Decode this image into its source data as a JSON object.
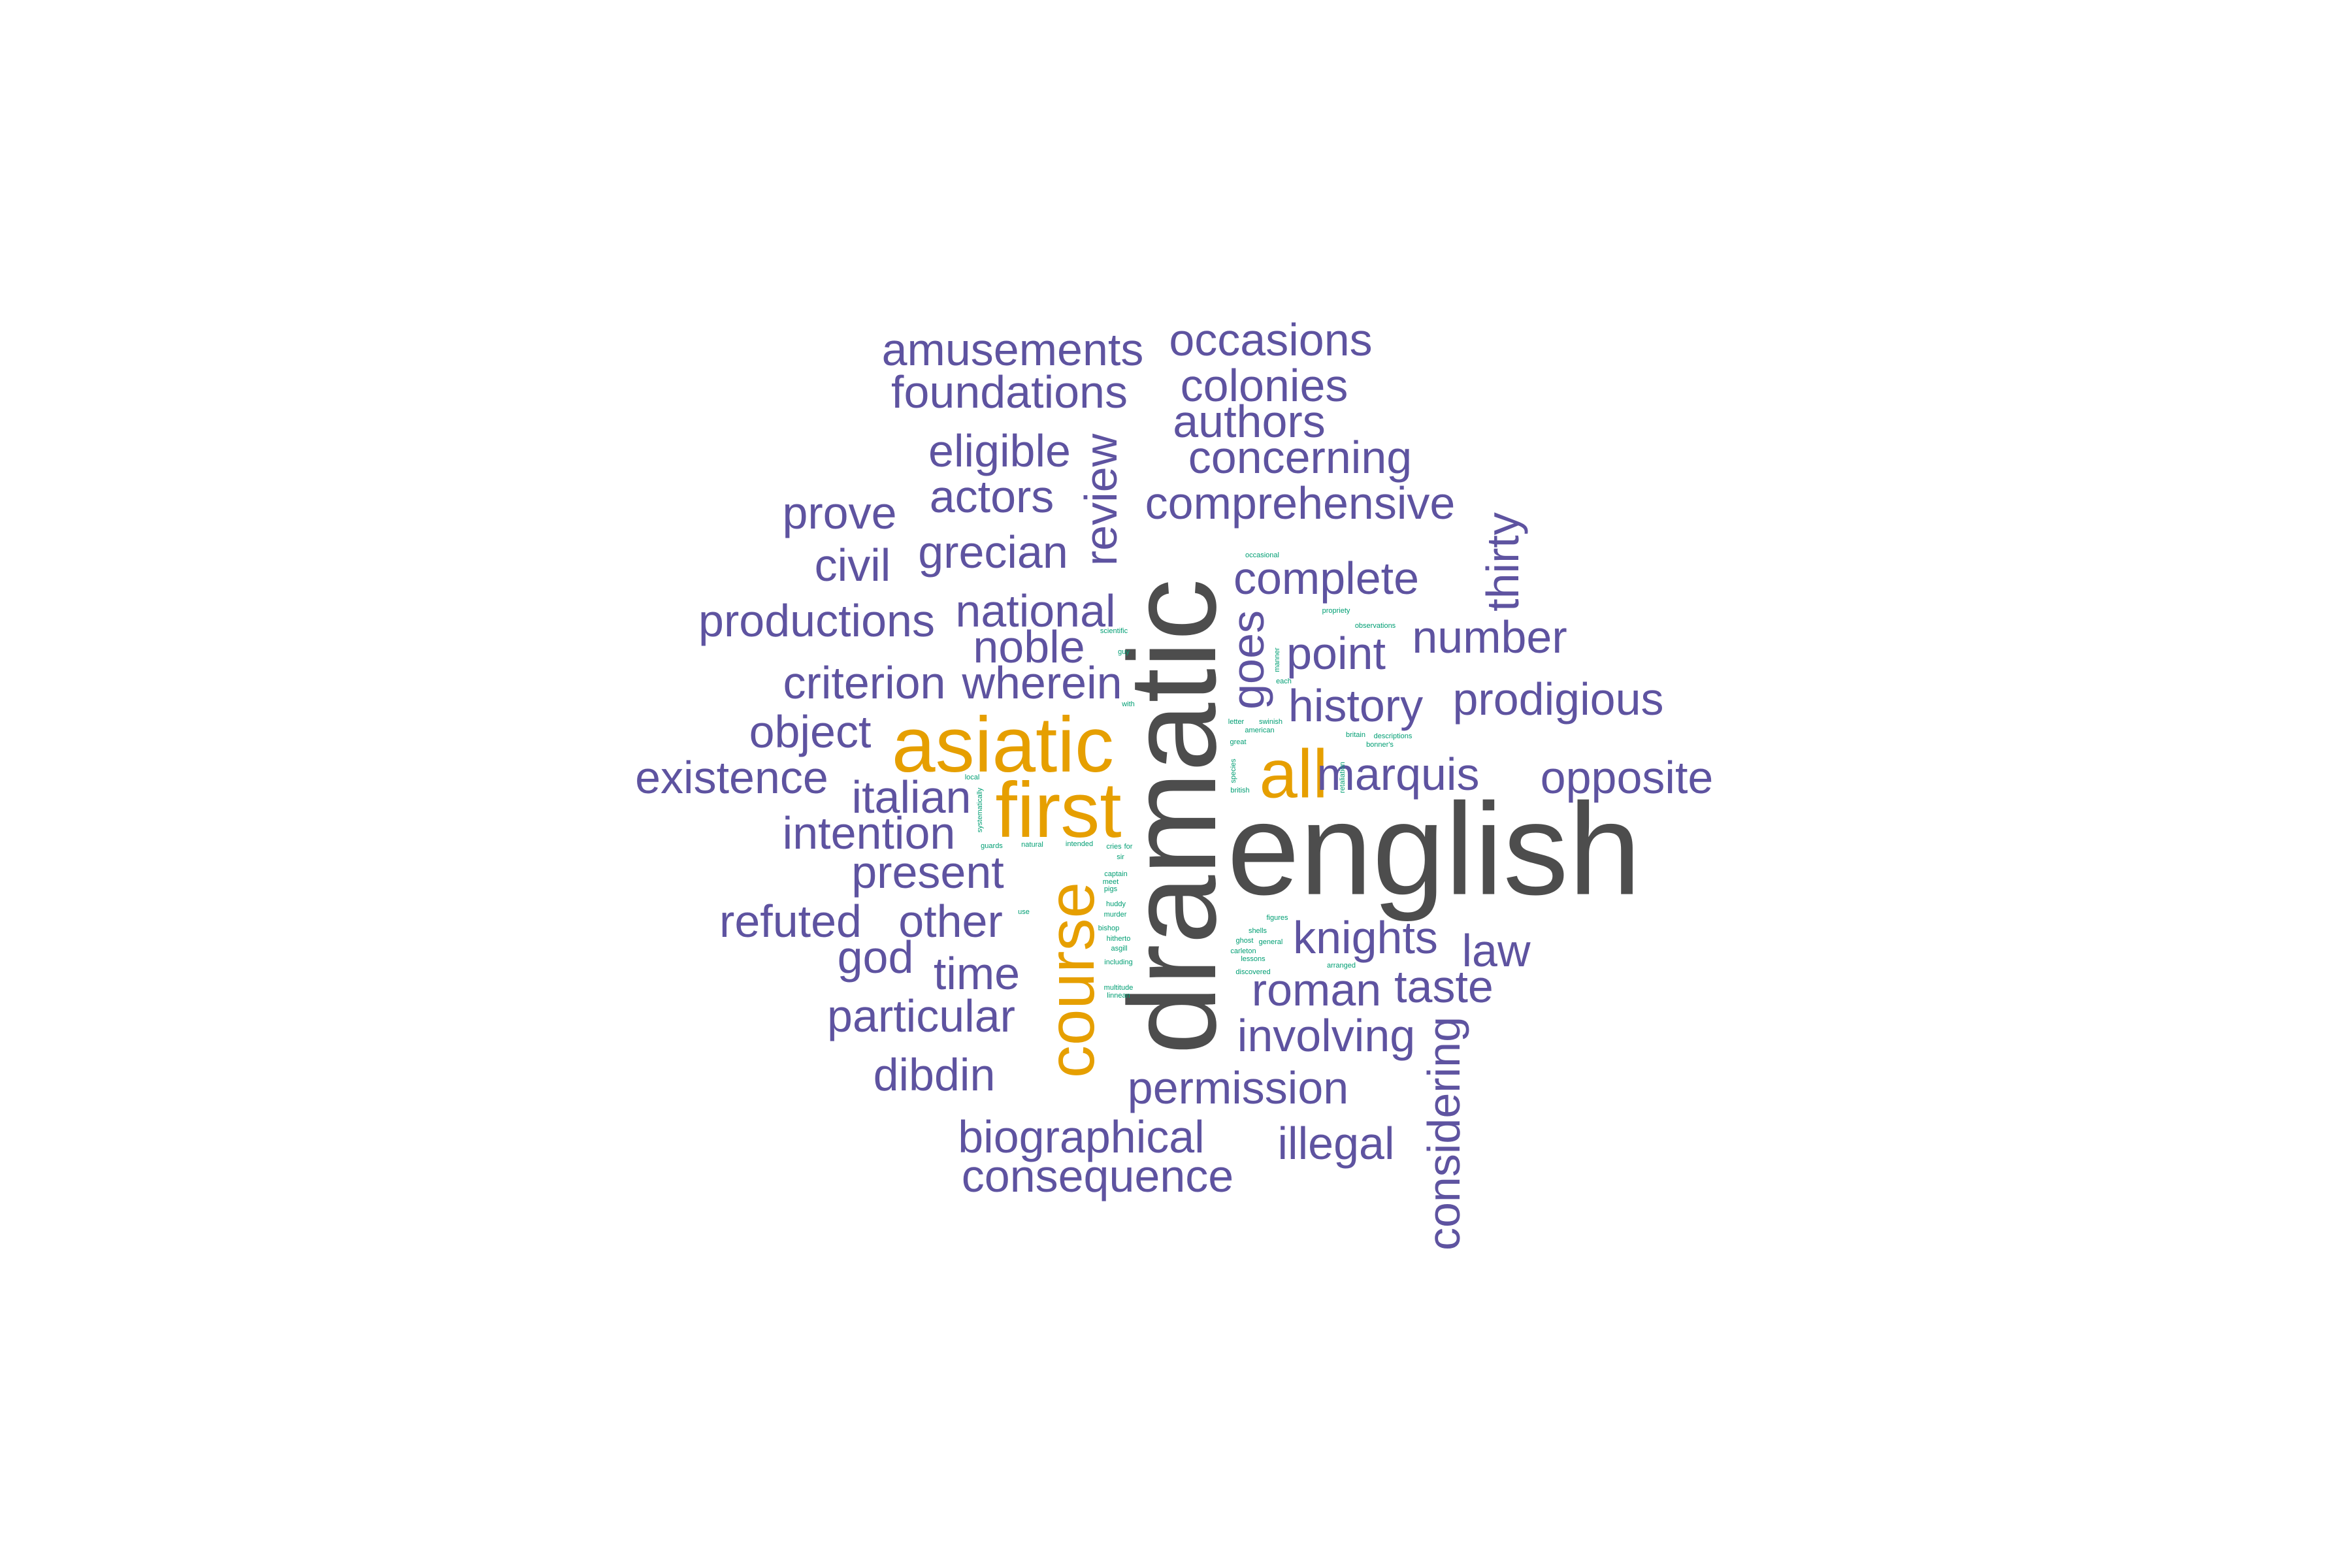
{
  "colors": {
    "background": "#ffffff",
    "tier_large": "#4d4d4d",
    "tier_medium": "#e69f00",
    "tier_small": "#5e53a0",
    "tier_tiny": "#009e73"
  },
  "words": [
    {
      "text": "english",
      "tier": "large"
    },
    {
      "text": "dramatic",
      "tier": "large"
    },
    {
      "text": "asiatic",
      "tier": "medium"
    },
    {
      "text": "first",
      "tier": "medium"
    },
    {
      "text": "all",
      "tier": "medium"
    },
    {
      "text": "course",
      "tier": "medium"
    },
    {
      "text": "amusements",
      "tier": "small"
    },
    {
      "text": "occasions",
      "tier": "small"
    },
    {
      "text": "foundations",
      "tier": "small"
    },
    {
      "text": "colonies",
      "tier": "small"
    },
    {
      "text": "authors",
      "tier": "small"
    },
    {
      "text": "eligible",
      "tier": "small"
    },
    {
      "text": "concerning",
      "tier": "small"
    },
    {
      "text": "review",
      "tier": "small"
    },
    {
      "text": "actors",
      "tier": "small"
    },
    {
      "text": "comprehensive",
      "tier": "small"
    },
    {
      "text": "prove",
      "tier": "small"
    },
    {
      "text": "thirty",
      "tier": "small"
    },
    {
      "text": "civil",
      "tier": "small"
    },
    {
      "text": "grecian",
      "tier": "small"
    },
    {
      "text": "complete",
      "tier": "small"
    },
    {
      "text": "productions",
      "tier": "small"
    },
    {
      "text": "national",
      "tier": "small"
    },
    {
      "text": "goes",
      "tier": "small"
    },
    {
      "text": "number",
      "tier": "small"
    },
    {
      "text": "noble",
      "tier": "small"
    },
    {
      "text": "point",
      "tier": "small"
    },
    {
      "text": "criterion",
      "tier": "small"
    },
    {
      "text": "wherein",
      "tier": "small"
    },
    {
      "text": "prodigious",
      "tier": "small"
    },
    {
      "text": "history",
      "tier": "small"
    },
    {
      "text": "object",
      "tier": "small"
    },
    {
      "text": "marquis",
      "tier": "small"
    },
    {
      "text": "existence",
      "tier": "small"
    },
    {
      "text": "opposite",
      "tier": "small"
    },
    {
      "text": "italian",
      "tier": "small"
    },
    {
      "text": "intention",
      "tier": "small"
    },
    {
      "text": "present",
      "tier": "small"
    },
    {
      "text": "refuted",
      "tier": "small"
    },
    {
      "text": "other",
      "tier": "small"
    },
    {
      "text": "knights",
      "tier": "small"
    },
    {
      "text": "god",
      "tier": "small"
    },
    {
      "text": "law",
      "tier": "small"
    },
    {
      "text": "time",
      "tier": "small"
    },
    {
      "text": "roman",
      "tier": "small"
    },
    {
      "text": "taste",
      "tier": "small"
    },
    {
      "text": "particular",
      "tier": "small"
    },
    {
      "text": "involving",
      "tier": "small"
    },
    {
      "text": "considering",
      "tier": "small"
    },
    {
      "text": "dibdin",
      "tier": "small"
    },
    {
      "text": "permission",
      "tier": "small"
    },
    {
      "text": "biographical",
      "tier": "small"
    },
    {
      "text": "illegal",
      "tier": "small"
    },
    {
      "text": "consequence",
      "tier": "small"
    },
    {
      "text": "occasional",
      "tier": "tiny"
    },
    {
      "text": "propriety",
      "tier": "tiny"
    },
    {
      "text": "observations",
      "tier": "tiny"
    },
    {
      "text": "scientific",
      "tier": "tiny"
    },
    {
      "text": "guy",
      "tier": "tiny"
    },
    {
      "text": "manner",
      "tier": "tiny"
    },
    {
      "text": "each",
      "tier": "tiny"
    },
    {
      "text": "swinish",
      "tier": "tiny"
    },
    {
      "text": "letter",
      "tier": "tiny"
    },
    {
      "text": "american",
      "tier": "tiny"
    },
    {
      "text": "descriptions",
      "tier": "tiny"
    },
    {
      "text": "britain",
      "tier": "tiny"
    },
    {
      "text": "bonner's",
      "tier": "tiny"
    },
    {
      "text": "great",
      "tier": "tiny"
    },
    {
      "text": "retaliation",
      "tier": "tiny"
    },
    {
      "text": "local",
      "tier": "tiny"
    },
    {
      "text": "species",
      "tier": "tiny"
    },
    {
      "text": "british",
      "tier": "tiny"
    },
    {
      "text": "systematically",
      "tier": "tiny"
    },
    {
      "text": "guards",
      "tier": "tiny"
    },
    {
      "text": "natural",
      "tier": "tiny"
    },
    {
      "text": "intended",
      "tier": "tiny"
    },
    {
      "text": "cries",
      "tier": "tiny"
    },
    {
      "text": "for",
      "tier": "tiny"
    },
    {
      "text": "sir",
      "tier": "tiny"
    },
    {
      "text": "captain",
      "tier": "tiny"
    },
    {
      "text": "meet",
      "tier": "tiny"
    },
    {
      "text": "pigs",
      "tier": "tiny"
    },
    {
      "text": "use",
      "tier": "tiny"
    },
    {
      "text": "huddy",
      "tier": "tiny"
    },
    {
      "text": "murder",
      "tier": "tiny"
    },
    {
      "text": "figures",
      "tier": "tiny"
    },
    {
      "text": "bishop",
      "tier": "tiny"
    },
    {
      "text": "shells",
      "tier": "tiny"
    },
    {
      "text": "hitherto",
      "tier": "tiny"
    },
    {
      "text": "ghost",
      "tier": "tiny"
    },
    {
      "text": "general",
      "tier": "tiny"
    },
    {
      "text": "asgill",
      "tier": "tiny"
    },
    {
      "text": "carleton",
      "tier": "tiny"
    },
    {
      "text": "lessons",
      "tier": "tiny"
    },
    {
      "text": "including",
      "tier": "tiny"
    },
    {
      "text": "arranged",
      "tier": "tiny"
    },
    {
      "text": "discovered",
      "tier": "tiny"
    },
    {
      "text": "multitude",
      "tier": "tiny"
    },
    {
      "text": "linnean",
      "tier": "tiny"
    },
    {
      "text": "with",
      "tier": "tiny"
    }
  ]
}
